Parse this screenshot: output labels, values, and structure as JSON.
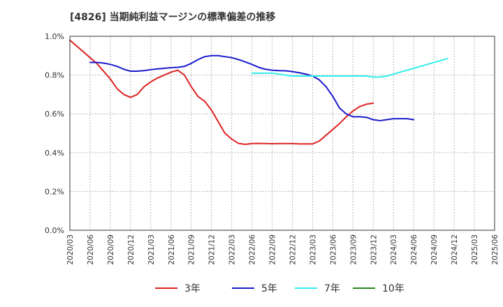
{
  "chart_data": {
    "type": "line",
    "title": "[4826]  当期純利益マージンの標準偏差の推移",
    "xlabel": "",
    "ylabel": "",
    "ylim": [
      0,
      1.0
    ],
    "y_ticks": [
      "0.0%",
      "0.2%",
      "0.4%",
      "0.6%",
      "0.8%",
      "1.0%"
    ],
    "x_ticks": [
      "2020/03",
      "2020/06",
      "2020/09",
      "2020/12",
      "2021/03",
      "2021/06",
      "2021/09",
      "2021/12",
      "2022/03",
      "2022/06",
      "2022/09",
      "2022/12",
      "2023/03",
      "2023/06",
      "2023/09",
      "2023/12",
      "2024/03",
      "2024/06",
      "2024/09",
      "2024/12",
      "2025/03",
      "2025/06"
    ],
    "grid": true,
    "legend_position": "bottom",
    "series": [
      {
        "name": "3年",
        "color": "#dd2222",
        "start": "2020/03",
        "values": [
          0.98,
          0.95,
          0.92,
          0.89,
          0.86,
          0.82,
          0.78,
          0.73,
          0.7,
          0.685,
          0.7,
          0.74,
          0.765,
          0.785,
          0.8,
          0.815,
          0.825,
          0.8,
          0.74,
          0.69,
          0.665,
          0.62,
          0.56,
          0.5,
          0.47,
          0.448,
          0.443,
          0.447,
          0.448,
          0.447,
          0.446,
          0.447,
          0.447,
          0.447,
          0.445,
          0.445,
          0.445,
          0.46,
          0.49,
          0.52,
          0.55,
          0.585,
          0.615,
          0.638,
          0.65,
          0.655
        ]
      },
      {
        "name": "5年",
        "color": "#1a1acc",
        "start": "2020/06",
        "values": [
          0.865,
          0.865,
          0.862,
          0.855,
          0.845,
          0.83,
          0.82,
          0.82,
          0.823,
          0.828,
          0.832,
          0.835,
          0.838,
          0.84,
          0.845,
          0.86,
          0.88,
          0.895,
          0.9,
          0.9,
          0.895,
          0.89,
          0.88,
          0.868,
          0.855,
          0.84,
          0.83,
          0.825,
          0.823,
          0.822,
          0.818,
          0.812,
          0.805,
          0.795,
          0.775,
          0.74,
          0.69,
          0.63,
          0.6,
          0.585,
          0.585,
          0.582,
          0.57,
          0.565,
          0.57,
          0.575,
          0.575,
          0.575,
          0.57
        ]
      },
      {
        "name": "7年",
        "color": "#33eeee",
        "start": "2022/06",
        "values": [
          0.81,
          0.81,
          0.81,
          0.81,
          0.805,
          0.8,
          0.795,
          0.795,
          0.795,
          0.795,
          0.795,
          0.795,
          0.795,
          0.795,
          0.795,
          0.795,
          0.795,
          0.795,
          0.79,
          0.79,
          0.795,
          0.805,
          0.815,
          0.825,
          0.835,
          0.845,
          0.855,
          0.865,
          0.875,
          0.885
        ]
      },
      {
        "name": "10年",
        "color": "#228822",
        "start": "2020/03",
        "values": []
      }
    ]
  }
}
